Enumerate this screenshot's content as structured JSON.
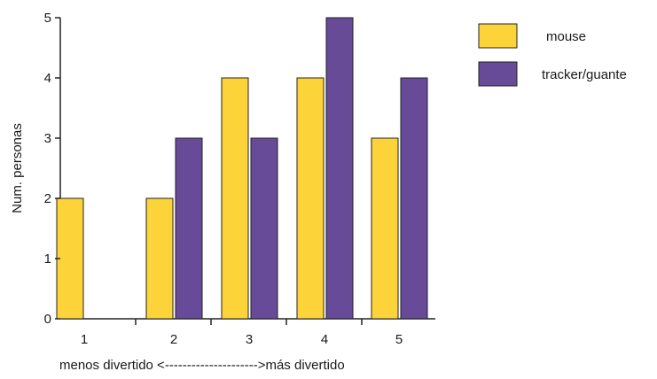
{
  "chart_data": {
    "type": "bar",
    "categories": [
      "1",
      "2",
      "3",
      "4",
      "5"
    ],
    "series": [
      {
        "name": "mouse",
        "values": [
          2,
          2,
          4,
          4,
          3
        ]
      },
      {
        "name": "tracker/guante",
        "values": [
          0,
          3,
          3,
          5,
          4
        ]
      }
    ],
    "title": "",
    "xlabel": "menos divertido <--------------------->más divertido",
    "ylabel": "Num. personas",
    "ylim": [
      0,
      5
    ],
    "yticks": [
      "0",
      "1",
      "2",
      "3",
      "4",
      "5"
    ],
    "grid": false,
    "legend": "top-right",
    "colors": {
      "mouse": "#FDD33A",
      "tracker/guante": "#674A98",
      "outline": "#222222",
      "axis": "#222222"
    }
  }
}
